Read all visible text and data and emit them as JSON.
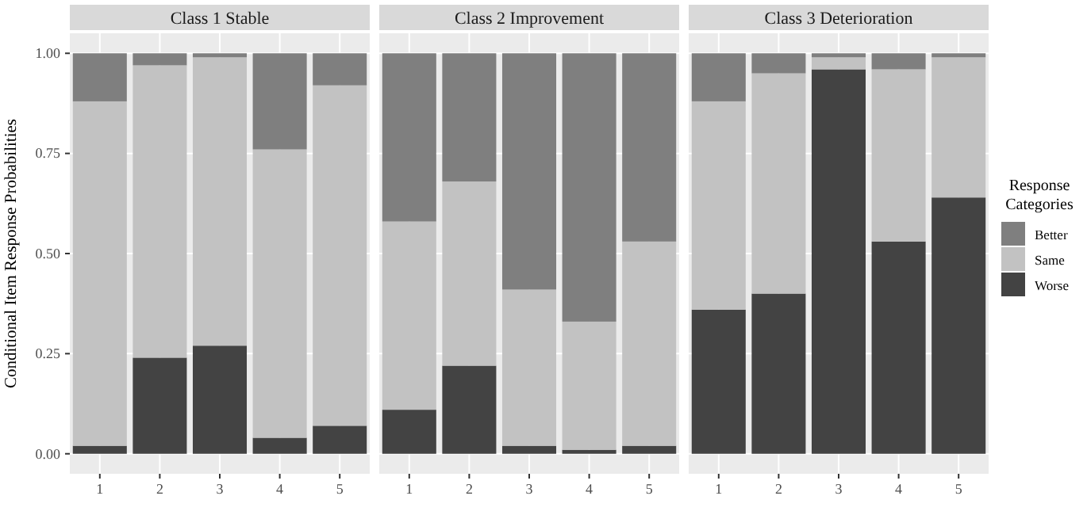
{
  "chart_data": [
    {
      "type": "bar",
      "title": "Class 1 Stable",
      "ylabel": "Conditional Item Response Probabilities",
      "categories": [
        "1",
        "2",
        "3",
        "4",
        "5"
      ],
      "stacked": true,
      "grid": true,
      "ylim": [
        -0.05,
        1.05
      ],
      "yticks": [
        {
          "value": 0,
          "label": "0.00"
        },
        {
          "value": 0.25,
          "label": "0.25"
        },
        {
          "value": 0.5,
          "label": "0.50"
        },
        {
          "value": 0.75,
          "label": "0.75"
        },
        {
          "value": 1,
          "label": "1.00"
        }
      ],
      "series": [
        {
          "color": "#434343",
          "values": [
            0.02,
            0.24,
            0.27,
            0.04,
            0.07
          ]
        },
        {
          "color": "#c2c2c2",
          "values": [
            0.86,
            0.73,
            0.72,
            0.72,
            0.85
          ]
        },
        {
          "color": "#7f7f7f",
          "values": [
            0.12,
            0.03,
            0.01,
            0.24,
            0.08
          ]
        }
      ]
    },
    {
      "type": "bar",
      "title": "Class 2 Improvement",
      "categories": [
        "1",
        "2",
        "3",
        "4",
        "5"
      ],
      "stacked": true,
      "grid": true,
      "tick_labels": "x",
      "ylim": [
        -0.05,
        1.05
      ],
      "yticks": [
        0,
        0.25,
        0.5,
        0.75,
        1
      ],
      "series": [
        {
          "color": "#434343",
          "values": [
            0.11,
            0.22,
            0.02,
            0.01,
            0.02
          ]
        },
        {
          "color": "#c2c2c2",
          "values": [
            0.47,
            0.46,
            0.39,
            0.32,
            0.51
          ]
        },
        {
          "color": "#7f7f7f",
          "values": [
            0.42,
            0.32,
            0.59,
            0.67,
            0.47
          ]
        }
      ]
    },
    {
      "type": "bar",
      "title": "Class 3 Deterioration",
      "categories": [
        "1",
        "2",
        "3",
        "4",
        "5"
      ],
      "stacked": true,
      "grid": true,
      "tick_labels": "x",
      "legend": "right",
      "legend_title": "Response Categories",
      "ylim": [
        -0.05,
        1.05
      ],
      "yticks": [
        0,
        0.25,
        0.5,
        0.75,
        1
      ],
      "series": [
        {
          "name": "Worse",
          "color": "#434343",
          "values": [
            0.36,
            0.4,
            0.96,
            0.53,
            0.64
          ]
        },
        {
          "name": "Same",
          "color": "#c2c2c2",
          "values": [
            0.52,
            0.55,
            0.03,
            0.43,
            0.35
          ]
        },
        {
          "name": "Better",
          "color": "#7f7f7f",
          "values": [
            0.12,
            0.05,
            0.01,
            0.04,
            0.01
          ]
        }
      ]
    }
  ]
}
